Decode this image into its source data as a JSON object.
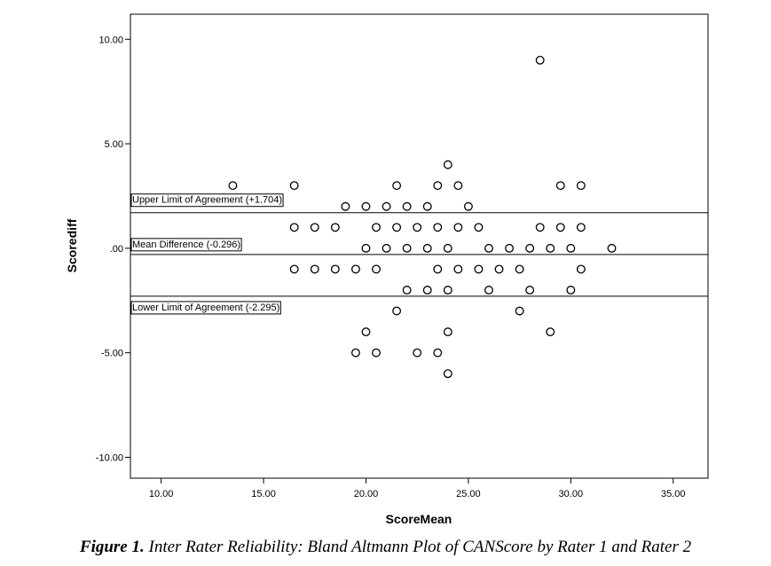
{
  "chart_data": {
    "type": "scatter",
    "title": "",
    "xlabel": "ScoreMean",
    "ylabel": "Scorediff",
    "xlim": [
      8.5,
      36.7
    ],
    "ylim": [
      -11.0,
      11.2
    ],
    "x_ticks": [
      10,
      15,
      20,
      25,
      30,
      35
    ],
    "x_tick_labels": [
      "10.00",
      "15.00",
      "20.00",
      "25.00",
      "30.00",
      "35.00"
    ],
    "y_ticks": [
      10,
      5,
      0,
      -5,
      -10
    ],
    "y_tick_labels": [
      "10.00",
      "5.00",
      ".00",
      "-5.00",
      "-10.00"
    ],
    "grid": false,
    "reference_lines": [
      {
        "name": "upper",
        "value": 1.704,
        "label": "Upper Limit of Agreement (+1.704)"
      },
      {
        "name": "mean",
        "value": -0.296,
        "label": "Mean Difference (-0.296)"
      },
      {
        "name": "lower",
        "value": -2.295,
        "label": "Lower Limit of Agreement (-2.295)"
      }
    ],
    "points": [
      [
        28.5,
        9
      ],
      [
        24,
        4
      ],
      [
        13.5,
        3
      ],
      [
        16.5,
        3
      ],
      [
        21.5,
        3
      ],
      [
        23.5,
        3
      ],
      [
        24.5,
        3
      ],
      [
        29.5,
        3
      ],
      [
        30.5,
        3
      ],
      [
        19,
        2
      ],
      [
        20,
        2
      ],
      [
        21,
        2
      ],
      [
        22,
        2
      ],
      [
        23,
        2
      ],
      [
        25,
        2
      ],
      [
        16.5,
        1
      ],
      [
        17.5,
        1
      ],
      [
        18.5,
        1
      ],
      [
        20.5,
        1
      ],
      [
        21.5,
        1
      ],
      [
        22.5,
        1
      ],
      [
        23.5,
        1
      ],
      [
        24.5,
        1
      ],
      [
        25.5,
        1
      ],
      [
        28.5,
        1
      ],
      [
        29.5,
        1
      ],
      [
        30.5,
        1
      ],
      [
        20,
        0
      ],
      [
        21,
        0
      ],
      [
        22,
        0
      ],
      [
        23,
        0
      ],
      [
        24,
        0
      ],
      [
        26,
        0
      ],
      [
        27,
        0
      ],
      [
        28,
        0
      ],
      [
        29,
        0
      ],
      [
        30,
        0
      ],
      [
        32,
        0
      ],
      [
        16.5,
        -1
      ],
      [
        17.5,
        -1
      ],
      [
        18.5,
        -1
      ],
      [
        19.5,
        -1
      ],
      [
        20.5,
        -1
      ],
      [
        23.5,
        -1
      ],
      [
        24.5,
        -1
      ],
      [
        25.5,
        -1
      ],
      [
        26.5,
        -1
      ],
      [
        27.5,
        -1
      ],
      [
        30.5,
        -1
      ],
      [
        22,
        -2
      ],
      [
        23,
        -2
      ],
      [
        24,
        -2
      ],
      [
        26,
        -2
      ],
      [
        28,
        -2
      ],
      [
        30,
        -2
      ],
      [
        21.5,
        -3
      ],
      [
        27.5,
        -3
      ],
      [
        20,
        -4
      ],
      [
        24,
        -4
      ],
      [
        29,
        -4
      ],
      [
        19.5,
        -5
      ],
      [
        20.5,
        -5
      ],
      [
        22.5,
        -5
      ],
      [
        23.5,
        -5
      ],
      [
        24,
        -6
      ]
    ]
  },
  "caption": {
    "label": "Figure 1.",
    "text": " Inter Rater Reliability: Bland Altmann Plot of CANScore by Rater 1 and Rater 2"
  }
}
